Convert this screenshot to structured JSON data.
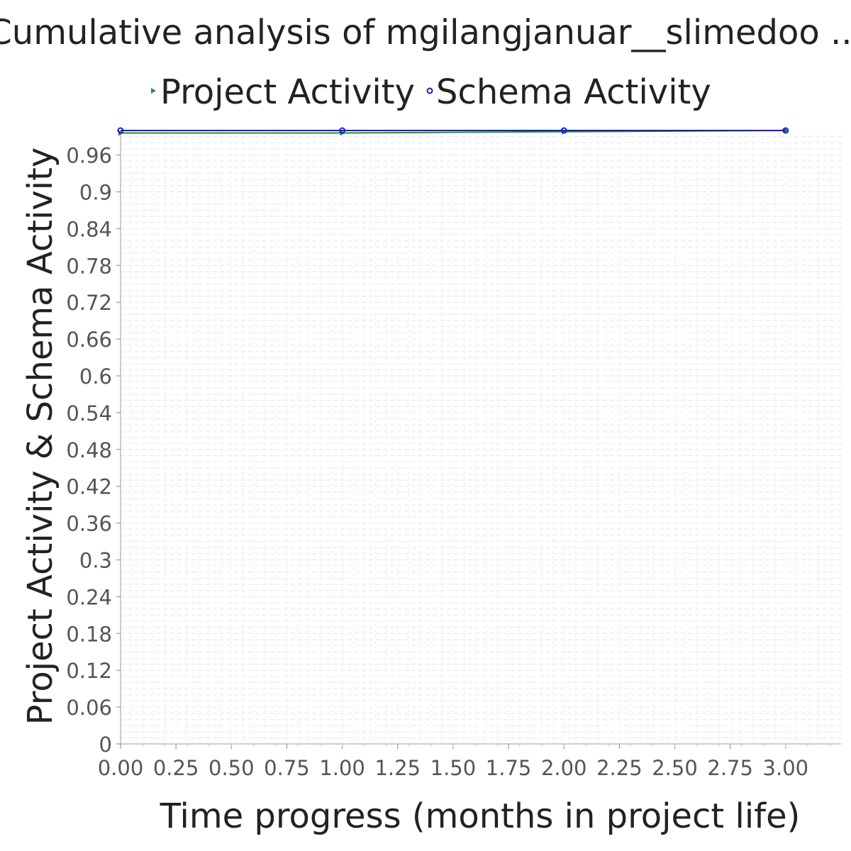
{
  "chart_data": {
    "type": "line",
    "title": "Cumulative analysis of mgilangjanuar__slimedoo ...",
    "xlabel": "Time progress (months in project life)",
    "ylabel": "Project Activity & Schema Activity",
    "xlim": [
      0,
      3.25
    ],
    "ylim": [
      0,
      1
    ],
    "x_ticks": [
      "0.00",
      "0.25",
      "0.50",
      "0.75",
      "1.00",
      "1.25",
      "1.50",
      "1.75",
      "2.00",
      "2.25",
      "2.50",
      "2.75",
      "3.00"
    ],
    "y_ticks": [
      "0",
      "0.06",
      "0.12",
      "0.18",
      "0.24",
      "0.3",
      "0.36",
      "0.42",
      "0.48",
      "0.54",
      "0.6",
      "0.66",
      "0.72",
      "0.78",
      "0.84",
      "0.9",
      "0.96"
    ],
    "legend_position": "top",
    "grid": true,
    "series": [
      {
        "name": "Project Activity",
        "color": "#2e8b2e",
        "marker": "triangle-right",
        "x": [
          0,
          1,
          2,
          3
        ],
        "y": [
          0.996,
          0.996,
          0.998,
          1.0
        ]
      },
      {
        "name": "Schema Activity",
        "color": "#1a1ad6",
        "marker": "circle",
        "x": [
          0,
          1,
          2,
          3
        ],
        "y": [
          1.0,
          1.0,
          1.0,
          1.0
        ]
      }
    ]
  }
}
